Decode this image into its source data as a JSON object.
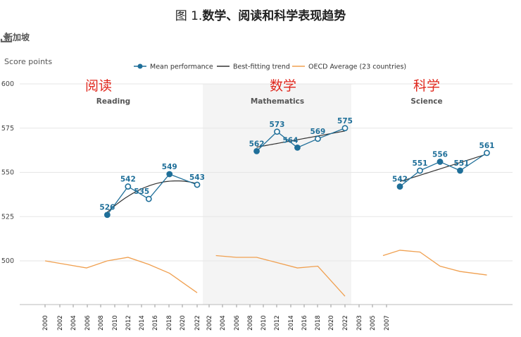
{
  "header": {
    "title_prefix": "图 1.",
    "title_main": "数学、阅读和科学表现趋势",
    "country": "新加坡",
    "y_axis_label": "Score points"
  },
  "icons": {
    "download": "download-icon"
  },
  "colors": {
    "mean": "#1f6f99",
    "trend": "#333333",
    "oecd": "#f0a050",
    "grid": "#e6e6e6",
    "shade": "#f4f4f4",
    "annotation": "#e0281e"
  },
  "chart_data": {
    "type": "line",
    "ylabel": "Score points",
    "ylim": [
      475,
      600
    ],
    "yticks": [
      500,
      525,
      550,
      575,
      600
    ],
    "legend": {
      "position": "top-center",
      "entries": [
        "Mean performance",
        "Best-fitting trend",
        "OECD Average (23 countries)"
      ]
    },
    "x_tick_labels": [
      "2000",
      "2002",
      "2004",
      "2006",
      "2008",
      "2010",
      "2012",
      "2014",
      "2016",
      "2018",
      "2020",
      "2022",
      "2002",
      "2004",
      "2006",
      "2008",
      "2010",
      "2012",
      "2014",
      "2016",
      "2018",
      "2020",
      "2022",
      "2003",
      "2005",
      "2007"
    ],
    "panels": [
      {
        "name": "Reading",
        "annotation": "阅读",
        "mean": {
          "x": [
            2009,
            2012,
            2015,
            2018,
            2022
          ],
          "y": [
            526,
            542,
            535,
            549,
            543
          ],
          "labels": [
            "526",
            "542",
            "535",
            "549",
            "543"
          ]
        },
        "oecd": {
          "x": [
            2000,
            2003,
            2006,
            2009,
            2012,
            2015,
            2018,
            2022
          ],
          "y": [
            500,
            498,
            496,
            500,
            502,
            498,
            493,
            482
          ]
        }
      },
      {
        "name": "Mathematics",
        "annotation": "数学",
        "mean": {
          "x": [
            2009,
            2012,
            2015,
            2018,
            2022
          ],
          "y": [
            562,
            573,
            564,
            569,
            575
          ],
          "labels": [
            "562",
            "573",
            "564",
            "569",
            "575"
          ]
        },
        "oecd": {
          "x": [
            2003,
            2006,
            2009,
            2012,
            2015,
            2018,
            2022
          ],
          "y": [
            503,
            502,
            502,
            499,
            496,
            497,
            480
          ]
        }
      },
      {
        "name": "Science",
        "annotation": "科学",
        "mean": {
          "x": [
            2009,
            2012,
            2015,
            2018,
            2022
          ],
          "y": [
            542,
            551,
            556,
            551,
            561
          ],
          "labels": [
            "542",
            "551",
            "556",
            "551",
            "561"
          ]
        },
        "oecd": {
          "x": [
            2006,
            2009,
            2012,
            2015,
            2018,
            2022
          ],
          "y": [
            503,
            506,
            505,
            497,
            494,
            492
          ]
        }
      }
    ]
  }
}
